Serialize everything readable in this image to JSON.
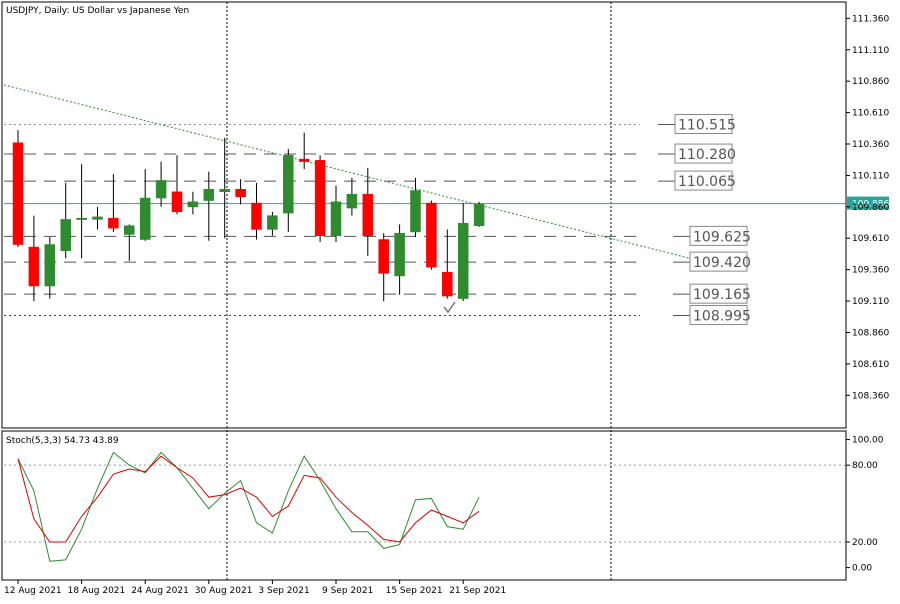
{
  "chart_data": [
    {
      "type": "candlestick",
      "title": "USDJPY, Daily:  US Dollar vs Japanese Yen",
      "ylim": [
        108.1,
        111.49
      ],
      "y_ticks": [
        "111.360",
        "111.110",
        "110.860",
        "110.610",
        "110.360",
        "110.110",
        "109.860",
        "109.610",
        "109.360",
        "109.110",
        "108.860",
        "108.610",
        "108.360"
      ],
      "x_labels": [
        "12 Aug 2021",
        "18 Aug 2021",
        "24 Aug 2021",
        "30 Aug 2021",
        "3 Sep 2021",
        "9 Sep 2021",
        "15 Sep 2021",
        "21 Sep 2021"
      ],
      "current_price": "109.886",
      "candles": [
        {
          "o": 110.37,
          "h": 110.47,
          "l": 109.54,
          "c": 109.56
        },
        {
          "o": 109.54,
          "h": 109.79,
          "l": 109.11,
          "c": 109.23
        },
        {
          "o": 109.23,
          "h": 109.62,
          "l": 109.13,
          "c": 109.56
        },
        {
          "o": 109.51,
          "h": 110.05,
          "l": 109.45,
          "c": 109.76
        },
        {
          "o": 109.77,
          "h": 110.2,
          "l": 109.45,
          "c": 109.77
        },
        {
          "o": 109.76,
          "h": 109.86,
          "l": 109.68,
          "c": 109.78
        },
        {
          "o": 109.77,
          "h": 110.12,
          "l": 109.66,
          "c": 109.69
        },
        {
          "o": 109.64,
          "h": 109.72,
          "l": 109.43,
          "c": 109.71
        },
        {
          "o": 109.6,
          "h": 110.16,
          "l": 109.59,
          "c": 109.93
        },
        {
          "o": 109.93,
          "h": 110.22,
          "l": 109.86,
          "c": 110.07
        },
        {
          "o": 109.98,
          "h": 110.27,
          "l": 109.8,
          "c": 109.82
        },
        {
          "o": 109.86,
          "h": 109.98,
          "l": 109.8,
          "c": 109.9
        },
        {
          "o": 109.91,
          "h": 110.14,
          "l": 109.59,
          "c": 110.0
        },
        {
          "o": 109.98,
          "h": 110.41,
          "l": 109.61,
          "c": 110.0
        },
        {
          "o": 110.0,
          "h": 110.08,
          "l": 109.88,
          "c": 109.94
        },
        {
          "o": 109.89,
          "h": 110.05,
          "l": 109.6,
          "c": 109.68
        },
        {
          "o": 109.68,
          "h": 109.82,
          "l": 109.63,
          "c": 109.79
        },
        {
          "o": 109.81,
          "h": 110.32,
          "l": 109.66,
          "c": 110.27
        },
        {
          "o": 110.24,
          "h": 110.45,
          "l": 110.16,
          "c": 110.22
        },
        {
          "o": 110.23,
          "h": 110.27,
          "l": 109.58,
          "c": 109.63
        },
        {
          "o": 109.63,
          "h": 110.03,
          "l": 109.58,
          "c": 109.9
        },
        {
          "o": 109.85,
          "h": 110.09,
          "l": 109.79,
          "c": 109.96
        },
        {
          "o": 109.96,
          "h": 110.17,
          "l": 109.47,
          "c": 109.63
        },
        {
          "o": 109.6,
          "h": 109.65,
          "l": 109.11,
          "c": 109.33
        },
        {
          "o": 109.31,
          "h": 109.72,
          "l": 109.16,
          "c": 109.65
        },
        {
          "o": 109.66,
          "h": 110.09,
          "l": 109.62,
          "c": 109.99
        },
        {
          "o": 109.89,
          "h": 109.91,
          "l": 109.36,
          "c": 109.38
        },
        {
          "o": 109.34,
          "h": 109.68,
          "l": 109.13,
          "c": 109.15
        },
        {
          "o": 109.13,
          "h": 109.89,
          "l": 109.11,
          "c": 109.73
        },
        {
          "o": 109.71,
          "h": 109.9,
          "l": 109.7,
          "c": 109.88
        }
      ],
      "levels": [
        {
          "label": "110.515",
          "price": 110.515,
          "line": "dotted",
          "color": "#888888"
        },
        {
          "label": "110.280",
          "price": 110.28,
          "line": "dashed",
          "color": "#555555"
        },
        {
          "label": "110.065",
          "price": 110.065,
          "line": "dashed",
          "color": "#555555"
        },
        {
          "label": "109.625",
          "price": 109.625,
          "line": "dashed",
          "color": "#555555"
        },
        {
          "label": "109.420",
          "price": 109.42,
          "line": "dashed",
          "color": "#555555"
        },
        {
          "label": "109.165",
          "price": 109.165,
          "line": "dashed",
          "color": "#555555"
        },
        {
          "label": "108.995",
          "price": 108.995,
          "line": "dotted",
          "color": "#cc0000"
        }
      ],
      "trendline": {
        "from_price": 110.83,
        "to_price": 109.45,
        "color": "#2e8b2e"
      },
      "colors": {
        "bull": "#2e8b2e",
        "bear": "#ff0000",
        "price_line": "#26a69a"
      }
    },
    {
      "type": "line",
      "title": "Stoch(5,3,3) 54.73 43.89",
      "ylim": [
        -5,
        102
      ],
      "y_ticks": [
        "100.00",
        "80.00",
        "20.00",
        "0.00"
      ],
      "levels": [
        80,
        20
      ],
      "series": [
        {
          "color": "#2e8b2e",
          "values": [
            85,
            60,
            5,
            6,
            30,
            62,
            90,
            80,
            74,
            90,
            78,
            62,
            46,
            58,
            68,
            35,
            27,
            60,
            87,
            68,
            46,
            28,
            28,
            15,
            18,
            53,
            54,
            32,
            30,
            55
          ]
        },
        {
          "color": "#dd0000",
          "values": [
            85,
            38,
            20,
            20,
            40,
            55,
            73,
            77,
            75,
            87,
            78,
            70,
            55,
            57,
            62,
            55,
            40,
            48,
            72,
            70,
            55,
            43,
            33,
            22,
            20,
            35,
            45,
            40,
            35,
            44
          ]
        }
      ]
    }
  ]
}
